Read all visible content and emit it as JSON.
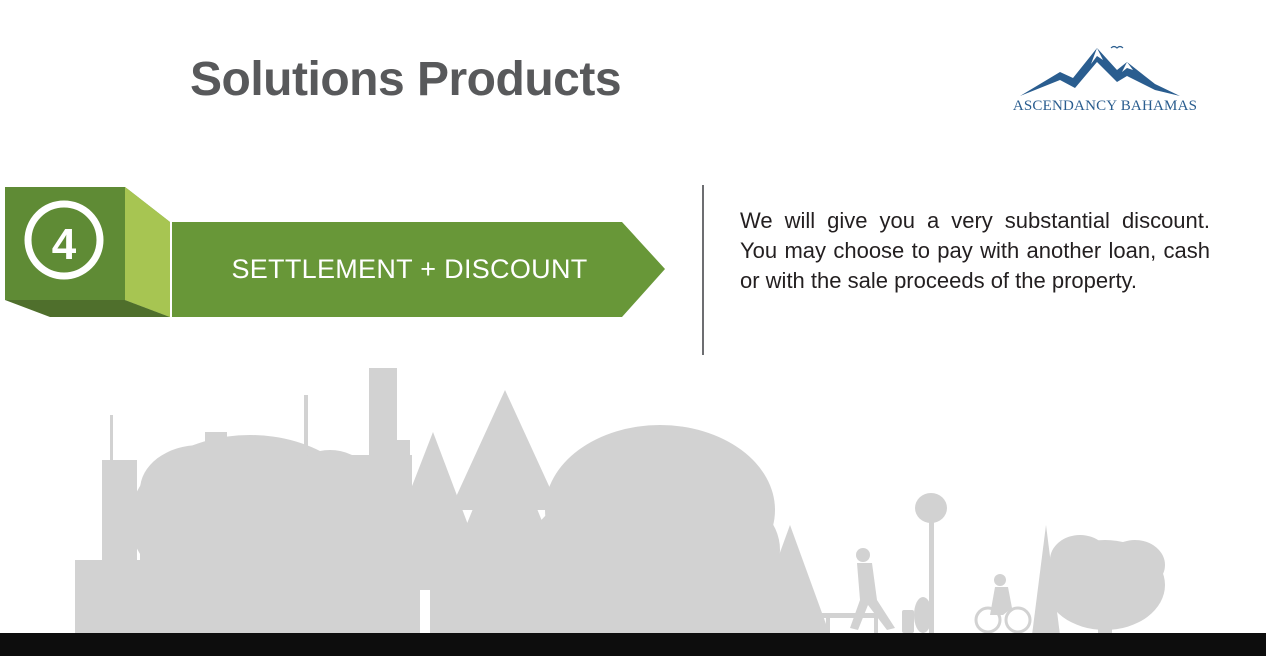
{
  "slide": {
    "title": "Solutions Products"
  },
  "logo": {
    "text": "ASCENDANCY BAHAMAS",
    "icon": "mountain-icon",
    "color": "#2a5d8f"
  },
  "step": {
    "number": "4",
    "label": "SETTLEMENT + DISCOUNT",
    "colors": {
      "dark_green": "#5f8b35",
      "arrow_green": "#689738",
      "light_green": "#a7c552",
      "shadow_green": "#4f6f2c"
    }
  },
  "description": {
    "text": "We will give you a very substantial discount. You may choose to pay with another loan, cash or with the sale proceeds of  the property."
  },
  "background": {
    "illustration": "city-park-skyline-silhouette",
    "silhouette_color": "#d2d2d2",
    "ground_color": "#0d0d0d"
  }
}
